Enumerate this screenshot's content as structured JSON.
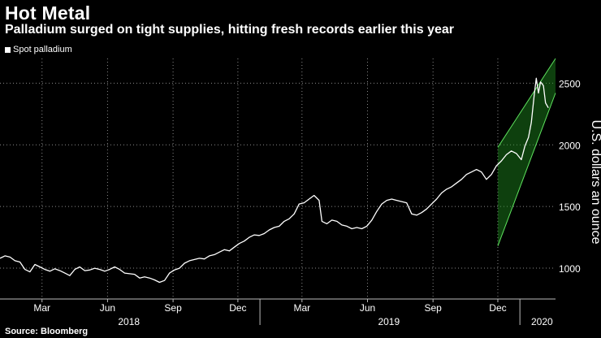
{
  "header": {
    "title": "Hot Metal",
    "subtitle": "Palladium surged on tight supplies, hitting fresh records earlier this year"
  },
  "footer": {
    "source": "Source: Bloomberg"
  },
  "colors": {
    "background": "#000000",
    "line": "#ffffff",
    "channel_fill": "#1f8f1f",
    "channel_edge": "#5ee35e",
    "grid": "#8a8a8a"
  },
  "chart_data": {
    "type": "line",
    "title": "Hot Metal",
    "subtitle": "Palladium surged on tight supplies, hitting fresh records earlier this year",
    "xlabel": "",
    "ylabel": "U.S. dollars an ounce",
    "legend": {
      "entries": [
        "Spot palladium"
      ],
      "placement": "top-left"
    },
    "ylim": [
      750,
      2700
    ],
    "yticks": [
      1000,
      1500,
      2000,
      2500
    ],
    "ytick_labels": [
      "1000",
      "1500",
      "2000",
      "2500"
    ],
    "xlim": [
      "2018-01-01",
      "2020-02-20"
    ],
    "xticks": [
      {
        "date": "2018-03-01",
        "label": "Mar"
      },
      {
        "date": "2018-06-01",
        "label": "Jun"
      },
      {
        "date": "2018-09-01",
        "label": "Sep"
      },
      {
        "date": "2018-12-01",
        "label": "Dec"
      },
      {
        "date": "2019-03-01",
        "label": "Mar"
      },
      {
        "date": "2019-06-01",
        "label": "Jun"
      },
      {
        "date": "2019-09-01",
        "label": "Sep"
      },
      {
        "date": "2019-12-01",
        "label": "Dec"
      }
    ],
    "year_labels": [
      {
        "center": "2018-07-01",
        "label": "2018"
      },
      {
        "center": "2019-07-01",
        "label": "2019"
      },
      {
        "center": "2020-02-01",
        "label": "2020"
      }
    ],
    "year_dividers": [
      "2019-01-01",
      "2020-01-01"
    ],
    "grid": true,
    "series": [
      {
        "name": "Spot palladium",
        "points": [
          [
            "2018-01-01",
            1080
          ],
          [
            "2018-01-08",
            1100
          ],
          [
            "2018-01-15",
            1090
          ],
          [
            "2018-01-22",
            1060
          ],
          [
            "2018-01-29",
            1050
          ],
          [
            "2018-02-05",
            990
          ],
          [
            "2018-02-12",
            970
          ],
          [
            "2018-02-19",
            1030
          ],
          [
            "2018-02-26",
            1010
          ],
          [
            "2018-03-05",
            990
          ],
          [
            "2018-03-12",
            975
          ],
          [
            "2018-03-19",
            995
          ],
          [
            "2018-03-26",
            980
          ],
          [
            "2018-04-02",
            960
          ],
          [
            "2018-04-09",
            940
          ],
          [
            "2018-04-16",
            990
          ],
          [
            "2018-04-23",
            1010
          ],
          [
            "2018-04-30",
            980
          ],
          [
            "2018-05-07",
            985
          ],
          [
            "2018-05-14",
            1000
          ],
          [
            "2018-05-21",
            990
          ],
          [
            "2018-05-28",
            975
          ],
          [
            "2018-06-04",
            990
          ],
          [
            "2018-06-11",
            1010
          ],
          [
            "2018-06-18",
            990
          ],
          [
            "2018-06-25",
            960
          ],
          [
            "2018-07-02",
            955
          ],
          [
            "2018-07-09",
            950
          ],
          [
            "2018-07-16",
            920
          ],
          [
            "2018-07-23",
            930
          ],
          [
            "2018-07-30",
            920
          ],
          [
            "2018-08-06",
            905
          ],
          [
            "2018-08-13",
            885
          ],
          [
            "2018-08-20",
            900
          ],
          [
            "2018-08-27",
            960
          ],
          [
            "2018-09-03",
            985
          ],
          [
            "2018-09-10",
            1000
          ],
          [
            "2018-09-17",
            1040
          ],
          [
            "2018-09-24",
            1060
          ],
          [
            "2018-10-01",
            1070
          ],
          [
            "2018-10-08",
            1080
          ],
          [
            "2018-10-15",
            1075
          ],
          [
            "2018-10-22",
            1100
          ],
          [
            "2018-10-29",
            1110
          ],
          [
            "2018-11-05",
            1130
          ],
          [
            "2018-11-12",
            1150
          ],
          [
            "2018-11-19",
            1140
          ],
          [
            "2018-11-26",
            1170
          ],
          [
            "2018-12-03",
            1200
          ],
          [
            "2018-12-10",
            1220
          ],
          [
            "2018-12-17",
            1250
          ],
          [
            "2018-12-24",
            1270
          ],
          [
            "2018-12-31",
            1265
          ],
          [
            "2019-01-07",
            1280
          ],
          [
            "2019-01-14",
            1310
          ],
          [
            "2019-01-21",
            1330
          ],
          [
            "2019-01-28",
            1340
          ],
          [
            "2019-02-04",
            1380
          ],
          [
            "2019-02-11",
            1400
          ],
          [
            "2019-02-18",
            1440
          ],
          [
            "2019-02-25",
            1520
          ],
          [
            "2019-03-04",
            1530
          ],
          [
            "2019-03-11",
            1560
          ],
          [
            "2019-03-18",
            1590
          ],
          [
            "2019-03-25",
            1550
          ],
          [
            "2019-03-29",
            1380
          ],
          [
            "2019-04-05",
            1360
          ],
          [
            "2019-04-12",
            1390
          ],
          [
            "2019-04-19",
            1380
          ],
          [
            "2019-04-26",
            1350
          ],
          [
            "2019-05-03",
            1340
          ],
          [
            "2019-05-10",
            1320
          ],
          [
            "2019-05-17",
            1330
          ],
          [
            "2019-05-24",
            1320
          ],
          [
            "2019-05-31",
            1340
          ],
          [
            "2019-06-07",
            1390
          ],
          [
            "2019-06-14",
            1460
          ],
          [
            "2019-06-21",
            1520
          ],
          [
            "2019-06-28",
            1550
          ],
          [
            "2019-07-05",
            1560
          ],
          [
            "2019-07-12",
            1550
          ],
          [
            "2019-07-19",
            1540
          ],
          [
            "2019-07-26",
            1530
          ],
          [
            "2019-08-02",
            1440
          ],
          [
            "2019-08-09",
            1430
          ],
          [
            "2019-08-16",
            1450
          ],
          [
            "2019-08-23",
            1480
          ],
          [
            "2019-08-30",
            1520
          ],
          [
            "2019-09-06",
            1560
          ],
          [
            "2019-09-13",
            1610
          ],
          [
            "2019-09-20",
            1640
          ],
          [
            "2019-09-27",
            1660
          ],
          [
            "2019-10-04",
            1690
          ],
          [
            "2019-10-11",
            1720
          ],
          [
            "2019-10-18",
            1760
          ],
          [
            "2019-10-25",
            1780
          ],
          [
            "2019-11-01",
            1800
          ],
          [
            "2019-11-08",
            1780
          ],
          [
            "2019-11-15",
            1720
          ],
          [
            "2019-11-22",
            1760
          ],
          [
            "2019-11-29",
            1830
          ],
          [
            "2019-12-06",
            1870
          ],
          [
            "2019-12-13",
            1920
          ],
          [
            "2019-12-20",
            1950
          ],
          [
            "2019-12-27",
            1930
          ],
          [
            "2020-01-03",
            1880
          ],
          [
            "2020-01-08",
            1990
          ],
          [
            "2020-01-13",
            2060
          ],
          [
            "2020-01-17",
            2180
          ],
          [
            "2020-01-21",
            2400
          ],
          [
            "2020-01-24",
            2540
          ],
          [
            "2020-01-27",
            2420
          ],
          [
            "2020-01-30",
            2510
          ],
          [
            "2020-02-03",
            2480
          ],
          [
            "2020-02-06",
            2340
          ],
          [
            "2020-02-10",
            2300
          ]
        ]
      }
    ],
    "annotations": [
      {
        "type": "trend-channel",
        "start": "2019-12-01",
        "end": "2020-02-20",
        "upper": [
          1980,
          2700
        ],
        "lower": [
          1180,
          2420
        ]
      }
    ]
  }
}
